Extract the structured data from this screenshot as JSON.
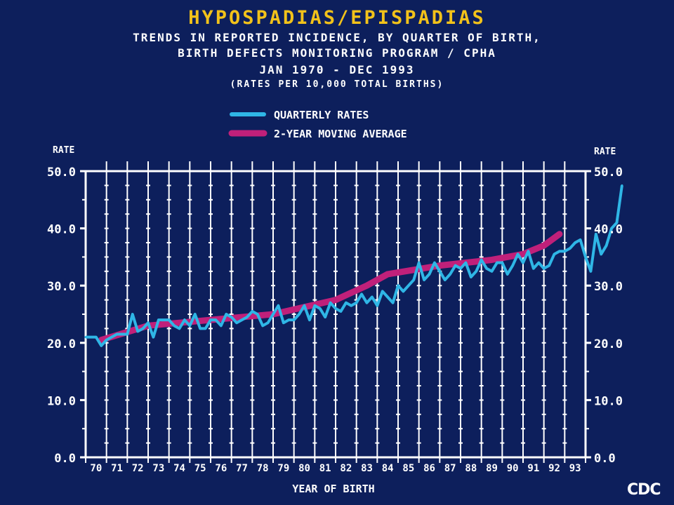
{
  "title": "HYPOSPADIAS/EPISPADIAS",
  "subtitle_lines": [
    "TRENDS IN REPORTED INCIDENCE, BY QUARTER OF BIRTH,",
    "BIRTH DEFECTS MONITORING PROGRAM / CPHA",
    "JAN 1970 - DEC 1993",
    "(RATES PER 10,000 TOTAL BIRTHS)"
  ],
  "logo": "CDC",
  "colors": {
    "background": "#0d1f5c",
    "title": "#f2c21a",
    "quarterly": "#2fb6e6",
    "moving_average": "#c0207a",
    "axis": "#ffffff"
  },
  "chart_data": {
    "type": "line",
    "xlabel": "YEAR OF BIRTH",
    "ylabel_left": "RATE",
    "ylabel_right": "RATE",
    "ylim": [
      0,
      50
    ],
    "yticks": [
      "0.0",
      "10.0",
      "20.0",
      "30.0",
      "40.0",
      "50.0"
    ],
    "x_tick_labels": [
      "70",
      "71",
      "72",
      "73",
      "74",
      "75",
      "76",
      "77",
      "78",
      "79",
      "80",
      "81",
      "82",
      "83",
      "84",
      "85",
      "86",
      "87",
      "88",
      "89",
      "90",
      "91",
      "92",
      "93"
    ],
    "legend": {
      "position": "top",
      "entries": [
        "QUARTERLY RATES",
        "2-YEAR MOVING AVERAGE"
      ]
    },
    "series": [
      {
        "name": "QUARTERLY RATES",
        "x_start": 1970.0,
        "x_step": 0.25,
        "values": [
          21.0,
          21.0,
          21.0,
          19.5,
          20.5,
          21.0,
          21.5,
          21.5,
          21.5,
          25.0,
          22.0,
          22.5,
          23.5,
          21.0,
          24.0,
          24.0,
          24.0,
          23.0,
          22.5,
          24.0,
          23.0,
          25.0,
          22.5,
          22.5,
          24.0,
          24.0,
          23.0,
          25.0,
          24.5,
          23.5,
          24.0,
          24.5,
          25.5,
          25.0,
          23.0,
          23.5,
          25.0,
          26.5,
          23.5,
          24.0,
          24.0,
          25.0,
          26.5,
          24.0,
          26.5,
          26.0,
          24.5,
          27.0,
          26.0,
          25.5,
          27.0,
          26.5,
          27.0,
          28.5,
          27.0,
          28.0,
          26.5,
          29.0,
          28.0,
          27.0,
          30.0,
          29.0,
          30.0,
          31.0,
          34.0,
          31.0,
          32.0,
          34.0,
          32.5,
          31.0,
          32.0,
          33.5,
          33.0,
          34.0,
          31.5,
          32.5,
          34.5,
          33.0,
          32.5,
          34.0,
          34.0,
          32.0,
          33.5,
          35.5,
          34.0,
          36.0,
          33.0,
          34.0,
          33.0,
          33.5,
          35.5,
          36.0,
          36.0,
          36.5,
          37.5,
          38.0,
          35.0,
          32.5,
          39.0,
          35.5,
          37.0,
          40.0,
          41.0,
          47.5
        ]
      },
      {
        "name": "2-YEAR MOVING AVERAGE",
        "x": [
          1970.75,
          1973.0,
          1976.0,
          1979.0,
          1982.0,
          1983.5,
          1984.5,
          1987.0,
          1989.5,
          1991.0,
          1992.0,
          1992.75
        ],
        "values": [
          20.5,
          23.0,
          24.0,
          25.0,
          27.5,
          30.0,
          32.0,
          33.5,
          34.5,
          35.5,
          37.0,
          39.0
        ]
      }
    ]
  }
}
